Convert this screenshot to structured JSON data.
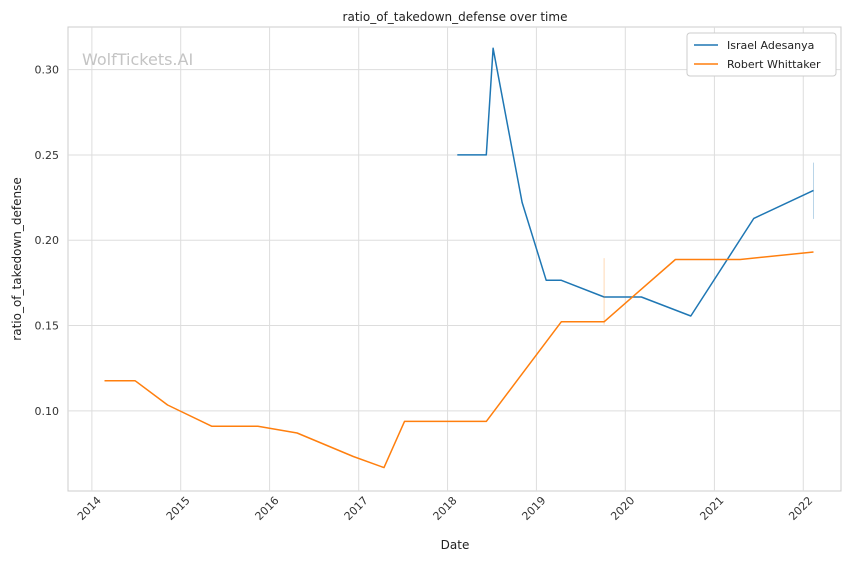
{
  "chart_data": {
    "type": "line",
    "title": "ratio_of_takedown_defense over time",
    "xlabel": "Date",
    "ylabel": "ratio_of_takedown_defense",
    "watermark": "WolfTickets.AI",
    "xlim": [
      "2013-09-25",
      "2022-06-05"
    ],
    "ylim": [
      0.053,
      0.325
    ],
    "xticks": [
      "2014",
      "2015",
      "2016",
      "2017",
      "2018",
      "2019",
      "2020",
      "2021",
      "2022"
    ],
    "yticks": [
      "0.10",
      "0.15",
      "0.20",
      "0.25",
      "0.30"
    ],
    "grid": true,
    "legend_position": "top-right",
    "series": [
      {
        "name": "Israel Adesanya",
        "color": "#1f77b4",
        "x": [
          "2018-02-10",
          "2018-06-09",
          "2018-07-07",
          "2018-11-03",
          "2019-02-10",
          "2019-04-13",
          "2019-10-06",
          "2020-03-07",
          "2020-09-26",
          "2021-06-12",
          "2022-02-12"
        ],
        "y": [
          0.25,
          0.25,
          0.3125,
          0.2222,
          0.1765,
          0.1765,
          0.1667,
          0.1667,
          0.1556,
          0.2128,
          0.2292
        ],
        "error_x": "2022-02-12",
        "error_range": [
          0.2125,
          0.2455
        ]
      },
      {
        "name": "Robert Whittaker",
        "color": "#ff7f0e",
        "x": [
          "2014-02-22",
          "2014-06-28",
          "2014-11-08",
          "2015-05-09",
          "2015-11-14",
          "2016-04-23",
          "2016-12-10",
          "2017-04-15",
          "2017-07-08",
          "2018-06-09",
          "2019-04-13",
          "2019-10-06",
          "2020-07-25",
          "2021-04-17",
          "2022-02-12"
        ],
        "y": [
          0.1176,
          0.1176,
          0.1034,
          0.0909,
          0.0909,
          0.087,
          0.0732,
          0.0667,
          0.0938,
          0.0938,
          0.1522,
          0.1522,
          0.1887,
          0.1887,
          0.1931
        ],
        "error_x": "2019-10-06",
        "error_range": [
          0.1505,
          0.1895
        ]
      }
    ]
  }
}
